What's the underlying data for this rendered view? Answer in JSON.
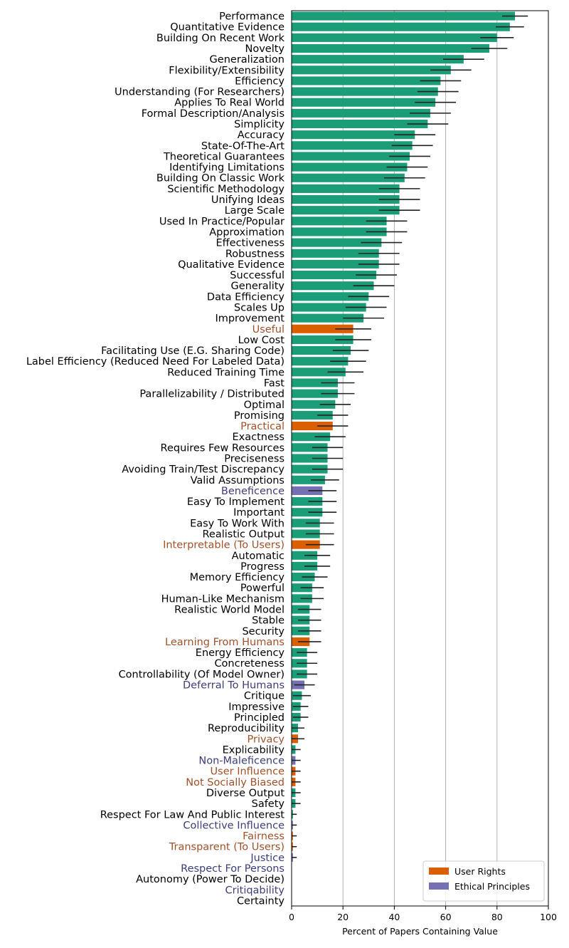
{
  "chart_data": {
    "type": "bar",
    "orientation": "horizontal",
    "xlabel": "Percent of Papers Containing Value",
    "xlim": [
      0,
      100
    ],
    "xticks": [
      0,
      20,
      40,
      60,
      80,
      100
    ],
    "grid": "vertical gridlines at 20, 40, 60, 80",
    "legend": {
      "placement": "bottom-right",
      "entries": [
        {
          "name": "User Rights",
          "color": "#d95f02"
        },
        {
          "name": "Ethical Principles",
          "color": "#7570b3"
        }
      ]
    },
    "group_colors": {
      "default": "#1b9e77",
      "user_rights": "#d95f02",
      "ethical": "#7570b3"
    },
    "label_colors": {
      "default": "#000000",
      "user_rights": "#a0522d",
      "ethical": "#3f3d7a"
    },
    "bars": [
      {
        "label": "Performance",
        "value": 87,
        "err": 5,
        "group": "default"
      },
      {
        "label": "Quantitative Evidence",
        "value": 85,
        "err": 5.5,
        "group": "default"
      },
      {
        "label": "Building On Recent Work",
        "value": 80,
        "err": 6.5,
        "group": "default"
      },
      {
        "label": "Novelty",
        "value": 77,
        "err": 7,
        "group": "default"
      },
      {
        "label": "Generalization",
        "value": 67,
        "err": 8,
        "group": "default"
      },
      {
        "label": "Flexibility/Extensibility",
        "value": 62,
        "err": 8,
        "group": "default"
      },
      {
        "label": "Efficiency",
        "value": 58,
        "err": 8,
        "group": "default"
      },
      {
        "label": "Understanding (For Researchers)",
        "value": 57,
        "err": 8,
        "group": "default"
      },
      {
        "label": "Applies To Real World",
        "value": 56,
        "err": 8,
        "group": "default"
      },
      {
        "label": "Formal Description/Analysis",
        "value": 54,
        "err": 8,
        "group": "default"
      },
      {
        "label": "Simplicity",
        "value": 53,
        "err": 8,
        "group": "default"
      },
      {
        "label": "Accuracy",
        "value": 48,
        "err": 8,
        "group": "default"
      },
      {
        "label": "State-Of-The-Art",
        "value": 47,
        "err": 8,
        "group": "default"
      },
      {
        "label": "Theoretical Guarantees",
        "value": 46,
        "err": 8,
        "group": "default"
      },
      {
        "label": "Identifying Limitations",
        "value": 45,
        "err": 8,
        "group": "default"
      },
      {
        "label": "Building On Classic Work",
        "value": 44,
        "err": 8,
        "group": "default"
      },
      {
        "label": "Scientific Methodology",
        "value": 42,
        "err": 8,
        "group": "default"
      },
      {
        "label": "Unifying Ideas",
        "value": 42,
        "err": 8,
        "group": "default"
      },
      {
        "label": "Large Scale",
        "value": 42,
        "err": 8,
        "group": "default"
      },
      {
        "label": "Used In Practice/Popular",
        "value": 37,
        "err": 8,
        "group": "default"
      },
      {
        "label": "Approximation",
        "value": 37,
        "err": 8,
        "group": "default"
      },
      {
        "label": "Effectiveness",
        "value": 35,
        "err": 8,
        "group": "default"
      },
      {
        "label": "Robustness",
        "value": 34,
        "err": 8,
        "group": "default"
      },
      {
        "label": "Qualitative Evidence",
        "value": 34,
        "err": 8,
        "group": "default"
      },
      {
        "label": "Successful",
        "value": 33,
        "err": 8,
        "group": "default"
      },
      {
        "label": "Generality",
        "value": 32,
        "err": 8,
        "group": "default"
      },
      {
        "label": "Data Efficiency",
        "value": 30,
        "err": 8,
        "group": "default"
      },
      {
        "label": "Scales Up",
        "value": 29,
        "err": 8,
        "group": "default"
      },
      {
        "label": "Improvement",
        "value": 28,
        "err": 8,
        "group": "default"
      },
      {
        "label": "Useful",
        "value": 24,
        "err": 7,
        "group": "user_rights"
      },
      {
        "label": "Low Cost",
        "value": 24,
        "err": 7,
        "group": "default"
      },
      {
        "label": "Facilitating Use (E.G. Sharing Code)",
        "value": 23,
        "err": 7,
        "group": "default"
      },
      {
        "label": "Label Efficiency (Reduced Need For Labeled Data)",
        "value": 22,
        "err": 7,
        "group": "default"
      },
      {
        "label": "Reduced Training Time",
        "value": 21,
        "err": 7,
        "group": "default"
      },
      {
        "label": "Fast",
        "value": 18,
        "err": 6.5,
        "group": "default"
      },
      {
        "label": "Parallelizability / Distributed",
        "value": 18,
        "err": 6.5,
        "group": "default"
      },
      {
        "label": "Optimal",
        "value": 17,
        "err": 6,
        "group": "default"
      },
      {
        "label": "Promising",
        "value": 16,
        "err": 6,
        "group": "default"
      },
      {
        "label": "Practical",
        "value": 16,
        "err": 6,
        "group": "user_rights"
      },
      {
        "label": "Exactness",
        "value": 15,
        "err": 6,
        "group": "default"
      },
      {
        "label": "Requires Few Resources",
        "value": 14,
        "err": 6,
        "group": "default"
      },
      {
        "label": "Preciseness",
        "value": 14,
        "err": 6,
        "group": "default"
      },
      {
        "label": "Avoiding Train/Test Discrepancy",
        "value": 14,
        "err": 6,
        "group": "default"
      },
      {
        "label": "Valid Assumptions",
        "value": 13,
        "err": 5.5,
        "group": "default"
      },
      {
        "label": "Beneficence",
        "value": 12,
        "err": 5.5,
        "group": "ethical"
      },
      {
        "label": "Easy To Implement",
        "value": 12,
        "err": 5.5,
        "group": "default"
      },
      {
        "label": "Important",
        "value": 12,
        "err": 5.5,
        "group": "default"
      },
      {
        "label": "Easy To Work With",
        "value": 11,
        "err": 5.5,
        "group": "default"
      },
      {
        "label": "Realistic Output",
        "value": 11,
        "err": 5.5,
        "group": "default"
      },
      {
        "label": "Interpretable (To Users)",
        "value": 11,
        "err": 5.5,
        "group": "user_rights"
      },
      {
        "label": "Automatic",
        "value": 10,
        "err": 5,
        "group": "default"
      },
      {
        "label": "Progress",
        "value": 10,
        "err": 5,
        "group": "default"
      },
      {
        "label": "Memory Efficiency",
        "value": 9,
        "err": 5,
        "group": "default"
      },
      {
        "label": "Powerful",
        "value": 8,
        "err": 4.5,
        "group": "default"
      },
      {
        "label": "Human-Like Mechanism",
        "value": 8,
        "err": 4.5,
        "group": "default"
      },
      {
        "label": "Realistic World Model",
        "value": 7,
        "err": 4.5,
        "group": "default"
      },
      {
        "label": "Stable",
        "value": 7,
        "err": 4.5,
        "group": "default"
      },
      {
        "label": "Security",
        "value": 7,
        "err": 4.5,
        "group": "default"
      },
      {
        "label": "Learning From Humans",
        "value": 7,
        "err": 4.5,
        "group": "user_rights"
      },
      {
        "label": "Energy Efficiency",
        "value": 6,
        "err": 4,
        "group": "default"
      },
      {
        "label": "Concreteness",
        "value": 6,
        "err": 4,
        "group": "default"
      },
      {
        "label": "Controllability (Of Model Owner)",
        "value": 6,
        "err": 4,
        "group": "default"
      },
      {
        "label": "Deferral To Humans",
        "value": 5,
        "err": 4,
        "group": "ethical"
      },
      {
        "label": "Critique",
        "value": 4,
        "err": 3.5,
        "group": "default"
      },
      {
        "label": "Impressive",
        "value": 3.5,
        "err": 3,
        "group": "default"
      },
      {
        "label": "Principled",
        "value": 3.5,
        "err": 3,
        "group": "default"
      },
      {
        "label": "Reproducibility",
        "value": 2.5,
        "err": 2.5,
        "group": "default"
      },
      {
        "label": "Privacy",
        "value": 2.5,
        "err": 2.5,
        "group": "user_rights"
      },
      {
        "label": "Explicability",
        "value": 1.5,
        "err": 2,
        "group": "default"
      },
      {
        "label": "Non-Maleficence",
        "value": 1.5,
        "err": 2,
        "group": "ethical"
      },
      {
        "label": "User Influence",
        "value": 1.5,
        "err": 2,
        "group": "user_rights"
      },
      {
        "label": "Not Socially Biased",
        "value": 1.5,
        "err": 2,
        "group": "user_rights"
      },
      {
        "label": "Diverse Output",
        "value": 1.5,
        "err": 2,
        "group": "default"
      },
      {
        "label": "Safety",
        "value": 1.5,
        "err": 2,
        "group": "default"
      },
      {
        "label": "Respect For Law And Public Interest",
        "value": 0.5,
        "err": 1.5,
        "group": "default"
      },
      {
        "label": "Collective Influence",
        "value": 0.5,
        "err": 1.5,
        "group": "ethical"
      },
      {
        "label": "Fairness",
        "value": 0.5,
        "err": 1.5,
        "group": "user_rights"
      },
      {
        "label": "Transparent (To Users)",
        "value": 0.5,
        "err": 1.5,
        "group": "user_rights"
      },
      {
        "label": "Justice",
        "value": 0.5,
        "err": 1.5,
        "group": "ethical"
      },
      {
        "label": "Respect For Persons",
        "value": 0,
        "err": 0,
        "group": "ethical"
      },
      {
        "label": "Autonomy (Power To Decide)",
        "value": 0,
        "err": 0,
        "group": "default"
      },
      {
        "label": "Critiqability",
        "value": 0,
        "err": 0,
        "group": "ethical"
      },
      {
        "label": "Certainty",
        "value": 0,
        "err": 0,
        "group": "default"
      }
    ]
  }
}
